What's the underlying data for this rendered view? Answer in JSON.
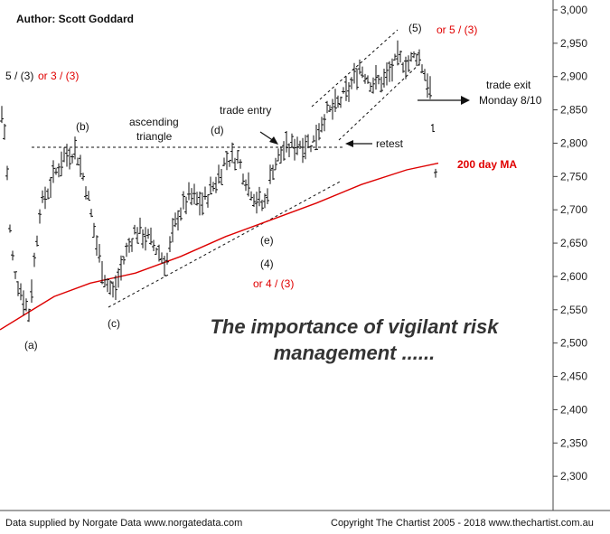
{
  "chart_data": {
    "type": "bar",
    "subtype": "ohlc",
    "ylim": [
      2250,
      3000
    ],
    "yticks": [
      2300,
      2350,
      2400,
      2450,
      2500,
      2550,
      2600,
      2650,
      2700,
      2750,
      2800,
      2850,
      2900,
      2950,
      3000
    ],
    "ytick_labels": [
      "2,300",
      "2,350",
      "2,400",
      "2,450",
      "2,500",
      "2,550",
      "2,600",
      "2,650",
      "2,700",
      "2,750",
      "2,800",
      "2,850",
      "2,900",
      "2,950",
      "3,000"
    ],
    "price_path": [
      {
        "x": 0,
        "y": 2860
      },
      {
        "x": 6,
        "y": 2810
      },
      {
        "x": 12,
        "y": 2640
      },
      {
        "x": 20,
        "y": 2590
      },
      {
        "x": 32,
        "y": 2545
      },
      {
        "x": 44,
        "y": 2700
      },
      {
        "x": 58,
        "y": 2745
      },
      {
        "x": 70,
        "y": 2780
      },
      {
        "x": 84,
        "y": 2790
      },
      {
        "x": 96,
        "y": 2730
      },
      {
        "x": 108,
        "y": 2640
      },
      {
        "x": 118,
        "y": 2590
      },
      {
        "x": 126,
        "y": 2575
      },
      {
        "x": 138,
        "y": 2630
      },
      {
        "x": 150,
        "y": 2670
      },
      {
        "x": 162,
        "y": 2660
      },
      {
        "x": 174,
        "y": 2640
      },
      {
        "x": 184,
        "y": 2620
      },
      {
        "x": 196,
        "y": 2690
      },
      {
        "x": 210,
        "y": 2720
      },
      {
        "x": 224,
        "y": 2710
      },
      {
        "x": 238,
        "y": 2740
      },
      {
        "x": 250,
        "y": 2775
      },
      {
        "x": 262,
        "y": 2780
      },
      {
        "x": 274,
        "y": 2740
      },
      {
        "x": 284,
        "y": 2715
      },
      {
        "x": 292,
        "y": 2705
      },
      {
        "x": 302,
        "y": 2765
      },
      {
        "x": 314,
        "y": 2790
      },
      {
        "x": 330,
        "y": 2800
      },
      {
        "x": 346,
        "y": 2800
      },
      {
        "x": 358,
        "y": 2840
      },
      {
        "x": 372,
        "y": 2855
      },
      {
        "x": 386,
        "y": 2880
      },
      {
        "x": 398,
        "y": 2915
      },
      {
        "x": 412,
        "y": 2890
      },
      {
        "x": 426,
        "y": 2895
      },
      {
        "x": 440,
        "y": 2925
      },
      {
        "x": 452,
        "y": 2920
      },
      {
        "x": 462,
        "y": 2935
      },
      {
        "x": 470,
        "y": 2905
      },
      {
        "x": 476,
        "y": 2880
      },
      {
        "x": 480,
        "y": 2790
      },
      {
        "x": 483,
        "y": 2740
      }
    ],
    "ma_200": [
      {
        "x": 0,
        "y": 2520
      },
      {
        "x": 30,
        "y": 2545
      },
      {
        "x": 60,
        "y": 2570
      },
      {
        "x": 100,
        "y": 2590
      },
      {
        "x": 150,
        "y": 2605
      },
      {
        "x": 200,
        "y": 2630
      },
      {
        "x": 250,
        "y": 2660
      },
      {
        "x": 300,
        "y": 2685
      },
      {
        "x": 350,
        "y": 2710
      },
      {
        "x": 400,
        "y": 2738
      },
      {
        "x": 450,
        "y": 2760
      },
      {
        "x": 485,
        "y": 2770
      }
    ],
    "annotations": {
      "author": "Author: Scott Goddard",
      "wave_5_3": "5 / (3)",
      "or_3_3": "or 3 / (3)",
      "b": "(b)",
      "ascending_triangle_1": "ascending",
      "ascending_triangle_2": "triangle",
      "d": "(d)",
      "trade_entry": "trade entry",
      "wave_5": "(5)",
      "or_5_3": "or 5 / (3)",
      "trade_exit_1": "trade exit",
      "trade_exit_2": "Monday 8/10",
      "retest": "retest",
      "ma_label": "200 day MA",
      "e": "(e)",
      "wave_4": "(4)",
      "or_4_3": "or 4 / (3)",
      "c": "(c)",
      "a": "(a)"
    },
    "headline_1": "The importance of vigilant risk",
    "headline_2": "management ......"
  },
  "footer": {
    "left": "Data supplied by Norgate Data www.norgatedata.com",
    "right": "Copyright The Chartist 2005 - 2018 www.thechartist.com.au"
  },
  "colors": {
    "bars": "#111111",
    "ma": "#dd0000",
    "red_text": "#e00000"
  }
}
